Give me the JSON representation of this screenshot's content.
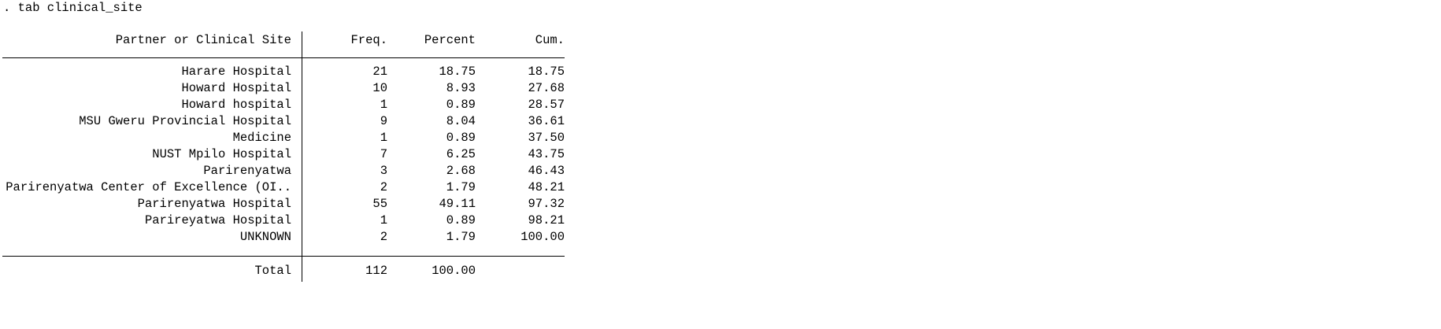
{
  "command": ". tab clinical_site",
  "table": {
    "headers": {
      "site": "Partner or Clinical Site",
      "freq": "Freq.",
      "percent": "Percent",
      "cum": "Cum."
    },
    "rows": [
      {
        "site": "Harare Hospital",
        "freq": "21",
        "percent": "18.75",
        "cum": "18.75"
      },
      {
        "site": "Howard Hospital",
        "freq": "10",
        "percent": "8.93",
        "cum": "27.68"
      },
      {
        "site": "Howard hospital",
        "freq": "1",
        "percent": "0.89",
        "cum": "28.57"
      },
      {
        "site": "MSU Gweru Provincial Hospital",
        "freq": "9",
        "percent": "8.04",
        "cum": "36.61"
      },
      {
        "site": "Medicine",
        "freq": "1",
        "percent": "0.89",
        "cum": "37.50"
      },
      {
        "site": "NUST Mpilo Hospital",
        "freq": "7",
        "percent": "6.25",
        "cum": "43.75"
      },
      {
        "site": "Parirenyatwa",
        "freq": "3",
        "percent": "2.68",
        "cum": "46.43"
      },
      {
        "site": "Parirenyatwa Center of Excellence (OI..",
        "freq": "2",
        "percent": "1.79",
        "cum": "48.21"
      },
      {
        "site": "Parirenyatwa Hospital",
        "freq": "55",
        "percent": "49.11",
        "cum": "97.32"
      },
      {
        "site": "Parireyatwa Hospital",
        "freq": "1",
        "percent": "0.89",
        "cum": "98.21"
      },
      {
        "site": "UNKNOWN",
        "freq": "2",
        "percent": "1.79",
        "cum": "100.00"
      }
    ],
    "total": {
      "label": "Total",
      "freq": "112",
      "percent": "100.00"
    }
  }
}
